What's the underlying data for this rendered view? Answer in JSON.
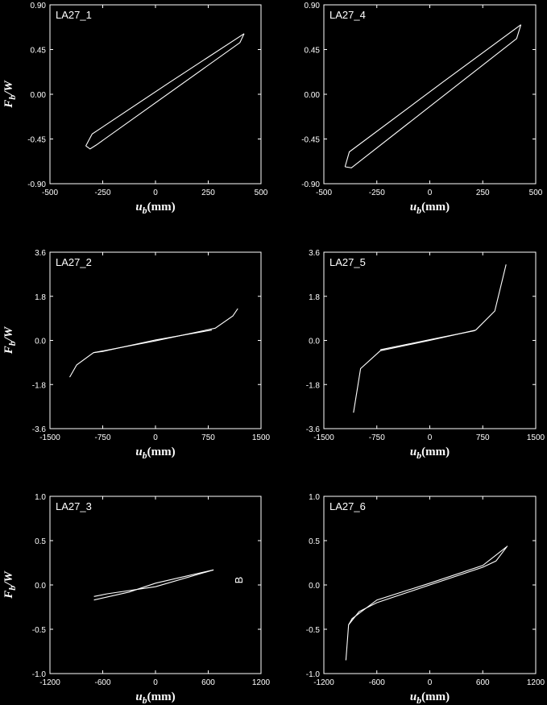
{
  "figure": {
    "stray_label": "B"
  },
  "chart_data": [
    {
      "type": "line",
      "panel_label": "LA27_1",
      "xlabel_main": "u",
      "xlabel_sub": "b",
      "xlabel_unit": "(mm)",
      "ylabel_main": "F",
      "ylabel_sub": "b",
      "ylabel_rest": "/W",
      "xlim": [
        -500,
        500
      ],
      "ylim": [
        -0.9,
        0.9
      ],
      "xticks": [
        "-500",
        "-250",
        "0",
        "250",
        "500"
      ],
      "yticks": [
        "-0.90",
        "-0.45",
        "0.00",
        "0.45",
        "0.90"
      ],
      "series": [
        {
          "x": [
            -330,
            -300,
            60,
            420
          ],
          "y": [
            -0.52,
            -0.4,
            0.11,
            0.61
          ]
        },
        {
          "x": [
            -330,
            -310,
            -280,
            400,
            420
          ],
          "y": [
            -0.52,
            -0.55,
            -0.51,
            0.52,
            0.61
          ]
        }
      ]
    },
    {
      "type": "line",
      "panel_label": "LA27_4",
      "xlabel_main": "u",
      "xlabel_sub": "b",
      "xlabel_unit": "(mm)",
      "ylabel_main": "",
      "ylabel_sub": "",
      "ylabel_rest": "",
      "xlim": [
        -500,
        500
      ],
      "ylim": [
        -0.9,
        0.9
      ],
      "xticks": [
        "-500",
        "-250",
        "0",
        "250",
        "500"
      ],
      "yticks": [
        "-0.90",
        "-0.45",
        "0.00",
        "0.45",
        "0.90"
      ],
      "series": [
        {
          "x": [
            -400,
            -380,
            60,
            430
          ],
          "y": [
            -0.73,
            -0.58,
            0.12,
            0.7
          ]
        },
        {
          "x": [
            -400,
            -370,
            410,
            430
          ],
          "y": [
            -0.73,
            -0.74,
            0.56,
            0.7
          ]
        }
      ]
    },
    {
      "type": "line",
      "panel_label": "LA27_2",
      "xlabel_main": "u",
      "xlabel_sub": "b",
      "xlabel_unit": "(mm)",
      "ylabel_main": "F",
      "ylabel_sub": "b",
      "ylabel_rest": "/W",
      "xlim": [
        -1500,
        1500
      ],
      "ylim": [
        -3.6,
        3.6
      ],
      "xticks": [
        "-1500",
        "-750",
        "0",
        "750",
        "1500"
      ],
      "yticks": [
        "-3.6",
        "-1.8",
        "0.0",
        "1.8",
        "3.6"
      ],
      "series": [
        {
          "x": [
            -1220,
            -1120,
            -880,
            0,
            850,
            1100,
            1170
          ],
          "y": [
            -1.5,
            -1.0,
            -0.5,
            -0.02,
            0.5,
            1.0,
            1.3
          ]
        },
        {
          "x": [
            -880,
            -750,
            0,
            800
          ],
          "y": [
            -0.5,
            -0.45,
            0.02,
            0.42
          ]
        }
      ]
    },
    {
      "type": "line",
      "panel_label": "LA27_5",
      "xlabel_main": "u",
      "xlabel_sub": "b",
      "xlabel_unit": "(mm)",
      "ylabel_main": "",
      "ylabel_sub": "",
      "ylabel_rest": "",
      "xlim": [
        -1500,
        1500
      ],
      "ylim": [
        -3.6,
        3.6
      ],
      "xticks": [
        "-1500",
        "-750",
        "0",
        "750",
        "1500"
      ],
      "yticks": [
        "-3.6",
        "-1.8",
        "0.0",
        "1.8",
        "3.6"
      ],
      "series": [
        {
          "x": [
            -1080,
            -980,
            -700,
            0,
            650,
            920,
            1080
          ],
          "y": [
            -2.95,
            -1.15,
            -0.42,
            0.0,
            0.42,
            1.2,
            3.1
          ]
        },
        {
          "x": [
            -700,
            0,
            640
          ],
          "y": [
            -0.38,
            0.03,
            0.4
          ]
        }
      ]
    },
    {
      "type": "line",
      "panel_label": "LA27_3",
      "xlabel_main": "u",
      "xlabel_sub": "b",
      "xlabel_unit": "(mm)",
      "ylabel_main": "F",
      "ylabel_sub": "b",
      "ylabel_rest": "/W",
      "xlim": [
        -1200,
        1200
      ],
      "ylim": [
        -1.0,
        1.0
      ],
      "xticks": [
        "-1200",
        "-600",
        "0",
        "600",
        "1200"
      ],
      "yticks": [
        "-1.0",
        "-0.5",
        "0.0",
        "0.5",
        "1.0"
      ],
      "series": [
        {
          "x": [
            -700,
            -300,
            0,
            660
          ],
          "y": [
            -0.17,
            -0.08,
            0.02,
            0.17
          ]
        },
        {
          "x": [
            -700,
            -550,
            0,
            660
          ],
          "y": [
            -0.13,
            -0.1,
            -0.02,
            0.17
          ]
        }
      ]
    },
    {
      "type": "line",
      "panel_label": "LA27_6",
      "xlabel_main": "u",
      "xlabel_sub": "b",
      "xlabel_unit": "(mm)",
      "ylabel_main": "",
      "ylabel_sub": "",
      "ylabel_rest": "",
      "xlim": [
        -1200,
        1200
      ],
      "ylim": [
        -1.0,
        1.0
      ],
      "xticks": [
        "-1200",
        "-600",
        "0",
        "600",
        "1200"
      ],
      "yticks": [
        "-1.0",
        "-0.5",
        "0.0",
        "0.5",
        "1.0"
      ],
      "series": [
        {
          "x": [
            -950,
            -920,
            -800,
            -600,
            0,
            600,
            750,
            880
          ],
          "y": [
            -0.85,
            -0.45,
            -0.3,
            -0.2,
            0.0,
            0.2,
            0.27,
            0.44
          ]
        },
        {
          "x": [
            -920,
            -880,
            -600,
            0,
            600,
            870
          ],
          "y": [
            -0.45,
            -0.38,
            -0.17,
            0.02,
            0.22,
            0.43
          ]
        }
      ]
    }
  ]
}
